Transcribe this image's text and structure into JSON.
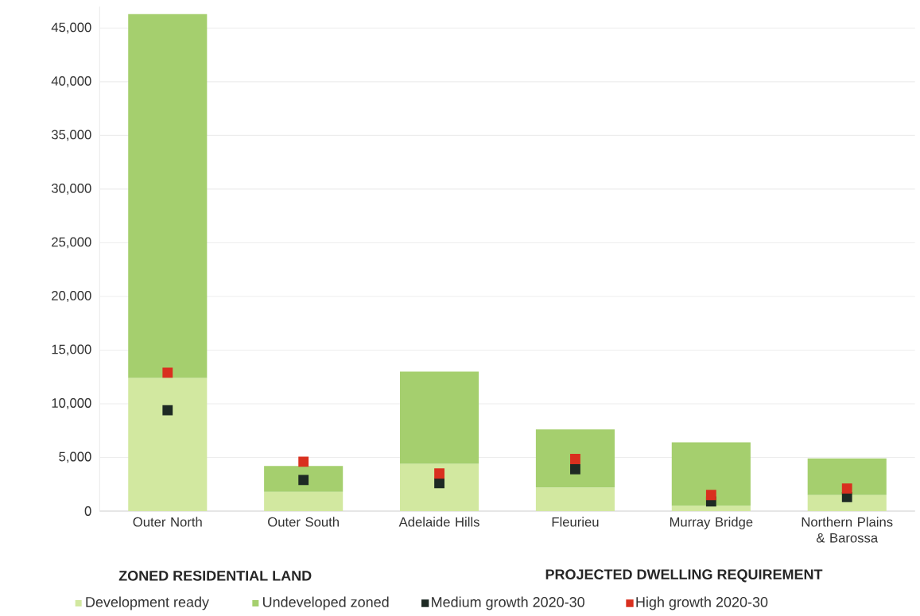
{
  "chart_data": {
    "type": "bar",
    "stacked": true,
    "categories": [
      "Outer North",
      "Outer South",
      "Adelaide Hills",
      "Fleurieu",
      "Murray Bridge",
      "Northern Plains & Barossa"
    ],
    "series": [
      {
        "name": "Development ready",
        "color": "#d2e8a0",
        "values": [
          12400,
          1800,
          4400,
          2200,
          500,
          1500
        ]
      },
      {
        "name": "Undeveloped zoned",
        "color": "#a5cf6e",
        "values": [
          33900,
          2400,
          8600,
          5400,
          5900,
          3400
        ]
      },
      {
        "name": "Medium growth 2020-30",
        "type": "scatter",
        "marker": "square",
        "color": "#1e2a24",
        "values": [
          9400,
          2900,
          2600,
          3900,
          900,
          1300
        ]
      },
      {
        "name": "High growth 2020-30",
        "type": "scatter",
        "marker": "square",
        "color": "#d9301f",
        "values": [
          12900,
          4600,
          3500,
          4850,
          1500,
          2100
        ]
      }
    ],
    "ylim": [
      0,
      47000
    ],
    "yticks": [
      {
        "value": 0,
        "label": "0"
      },
      {
        "value": 5000,
        "label": "5,000"
      },
      {
        "value": 10000,
        "label": "10,000"
      },
      {
        "value": 15000,
        "label": "15,000"
      },
      {
        "value": 20000,
        "label": "20,000"
      },
      {
        "value": 25000,
        "label": "25,000"
      },
      {
        "value": 30000,
        "label": "30,000"
      },
      {
        "value": 35000,
        "label": "35,000"
      },
      {
        "value": 40000,
        "label": "40,000"
      },
      {
        "value": 45000,
        "label": "45,000"
      }
    ],
    "grid": "y",
    "legend": "bottom",
    "annotations": [
      "ZONED RESIDENTIAL LAND",
      "PROJECTED DWELLING REQUIREMENT"
    ]
  }
}
